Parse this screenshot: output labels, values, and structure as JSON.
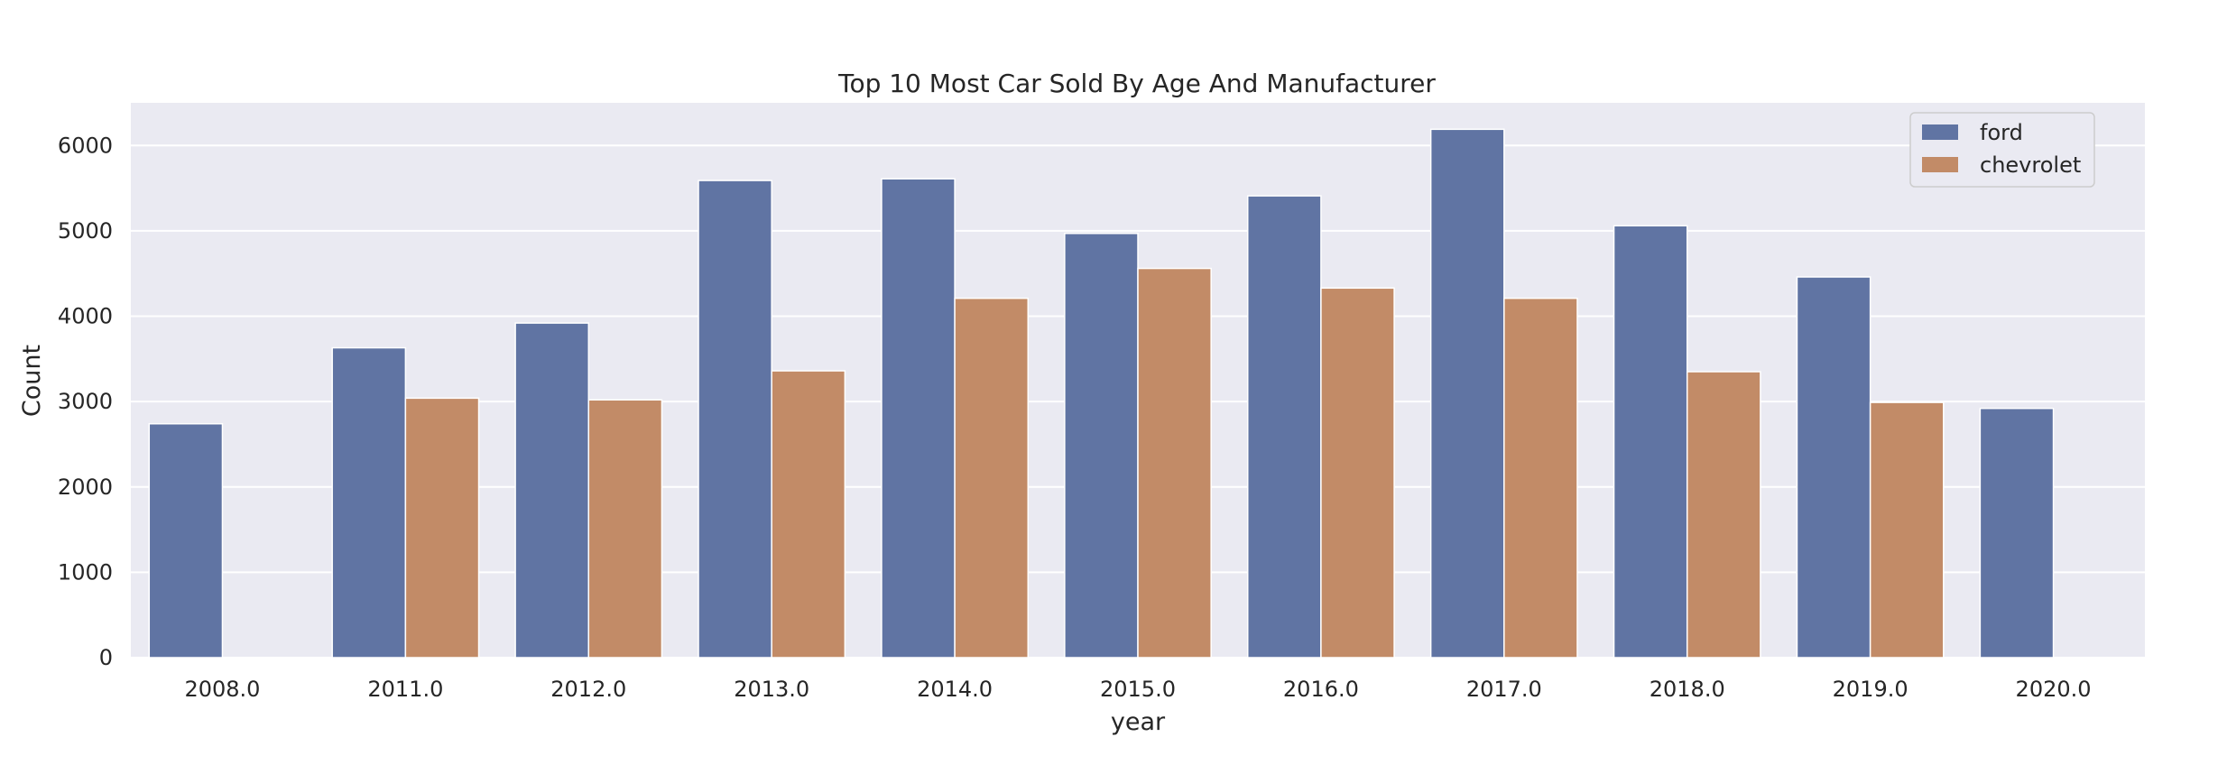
{
  "chart_data": {
    "type": "bar",
    "title": "Top 10 Most Car Sold By Age And Manufacturer",
    "xlabel": "year",
    "ylabel": "Count",
    "categories": [
      "2008.0",
      "2011.0",
      "2012.0",
      "2013.0",
      "2014.0",
      "2015.0",
      "2016.0",
      "2017.0",
      "2018.0",
      "2019.0",
      "2020.0"
    ],
    "series": [
      {
        "name": "ford",
        "color": "#6074a3",
        "values": [
          2740,
          3630,
          3920,
          5590,
          5610,
          4970,
          5410,
          6190,
          5060,
          4460,
          2920
        ]
      },
      {
        "name": "chevrolet",
        "color": "#c28b67",
        "values": [
          null,
          3040,
          3020,
          3360,
          4210,
          4560,
          4330,
          4210,
          3350,
          2990,
          null
        ]
      }
    ],
    "yticks": [
      "0",
      "1000",
      "2000",
      "3000",
      "4000",
      "5000",
      "6000"
    ],
    "ylim": [
      0,
      6500
    ],
    "grid": true,
    "legend_position": "top-right"
  }
}
